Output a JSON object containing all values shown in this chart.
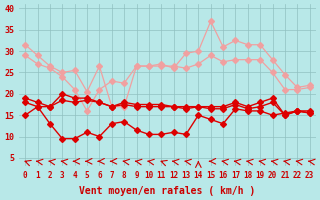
{
  "title": "",
  "xlabel": "Vent moyen/en rafales ( km/h )",
  "ylabel": "",
  "bg_color": "#b8e8e8",
  "grid_color": "#a0c8c8",
  "x": [
    0,
    1,
    2,
    3,
    4,
    5,
    6,
    7,
    8,
    9,
    10,
    11,
    12,
    13,
    14,
    15,
    16,
    17,
    18,
    19,
    20,
    21,
    22,
    23
  ],
  "ylim": [
    3,
    41
  ],
  "yticks": [
    5,
    10,
    15,
    20,
    25,
    30,
    35,
    40
  ],
  "line_rafales_max": [
    31.5,
    29,
    26.5,
    25,
    25.5,
    20.5,
    26.5,
    17,
    17,
    26.5,
    26.5,
    27,
    26,
    29.5,
    30,
    37,
    31,
    32.5,
    31.5,
    31.5,
    28,
    24.5,
    21.5,
    22
  ],
  "line_rafales_mean": [
    29,
    27,
    26,
    24,
    21,
    16,
    21,
    23,
    22.5,
    26.5,
    26.5,
    26.5,
    26.5,
    26,
    27,
    29,
    27.5,
    28,
    28,
    28,
    25,
    21,
    21,
    21.5
  ],
  "line_rafales_min": [
    null,
    null,
    null,
    null,
    null,
    null,
    null,
    null,
    null,
    null,
    null,
    null,
    null,
    null,
    null,
    null,
    null,
    null,
    null,
    null,
    null,
    null,
    null,
    null
  ],
  "line_vent_max": [
    19,
    18,
    17,
    20,
    19,
    19,
    18,
    17,
    18,
    17.5,
    17.5,
    17.5,
    17,
    17,
    17,
    17,
    17,
    18,
    17,
    18,
    19,
    15,
    16,
    16
  ],
  "line_vent_mean": [
    18,
    17,
    17,
    18.5,
    18,
    18.5,
    18,
    17,
    17.5,
    17,
    17,
    17,
    17,
    16.5,
    17,
    16.5,
    16.5,
    17.5,
    16.5,
    17,
    18,
    15,
    16,
    15.5
  ],
  "line_vent_min": [
    15,
    17,
    13,
    9.5,
    9.5,
    11,
    10,
    13,
    13.5,
    11.5,
    10.5,
    10.5,
    11,
    10.5,
    15,
    14,
    13,
    16.5,
    16,
    16,
    15,
    15.5,
    16,
    15.5
  ],
  "color_rafales": "#f0a0a0",
  "color_vent": "#dd0000",
  "marker_size": 3,
  "wind_dirs": [
    225,
    247,
    247,
    247,
    270,
    270,
    270,
    270,
    247,
    247,
    247,
    225,
    247,
    247,
    180,
    270,
    247,
    247,
    247,
    247,
    247,
    247,
    247,
    247
  ]
}
